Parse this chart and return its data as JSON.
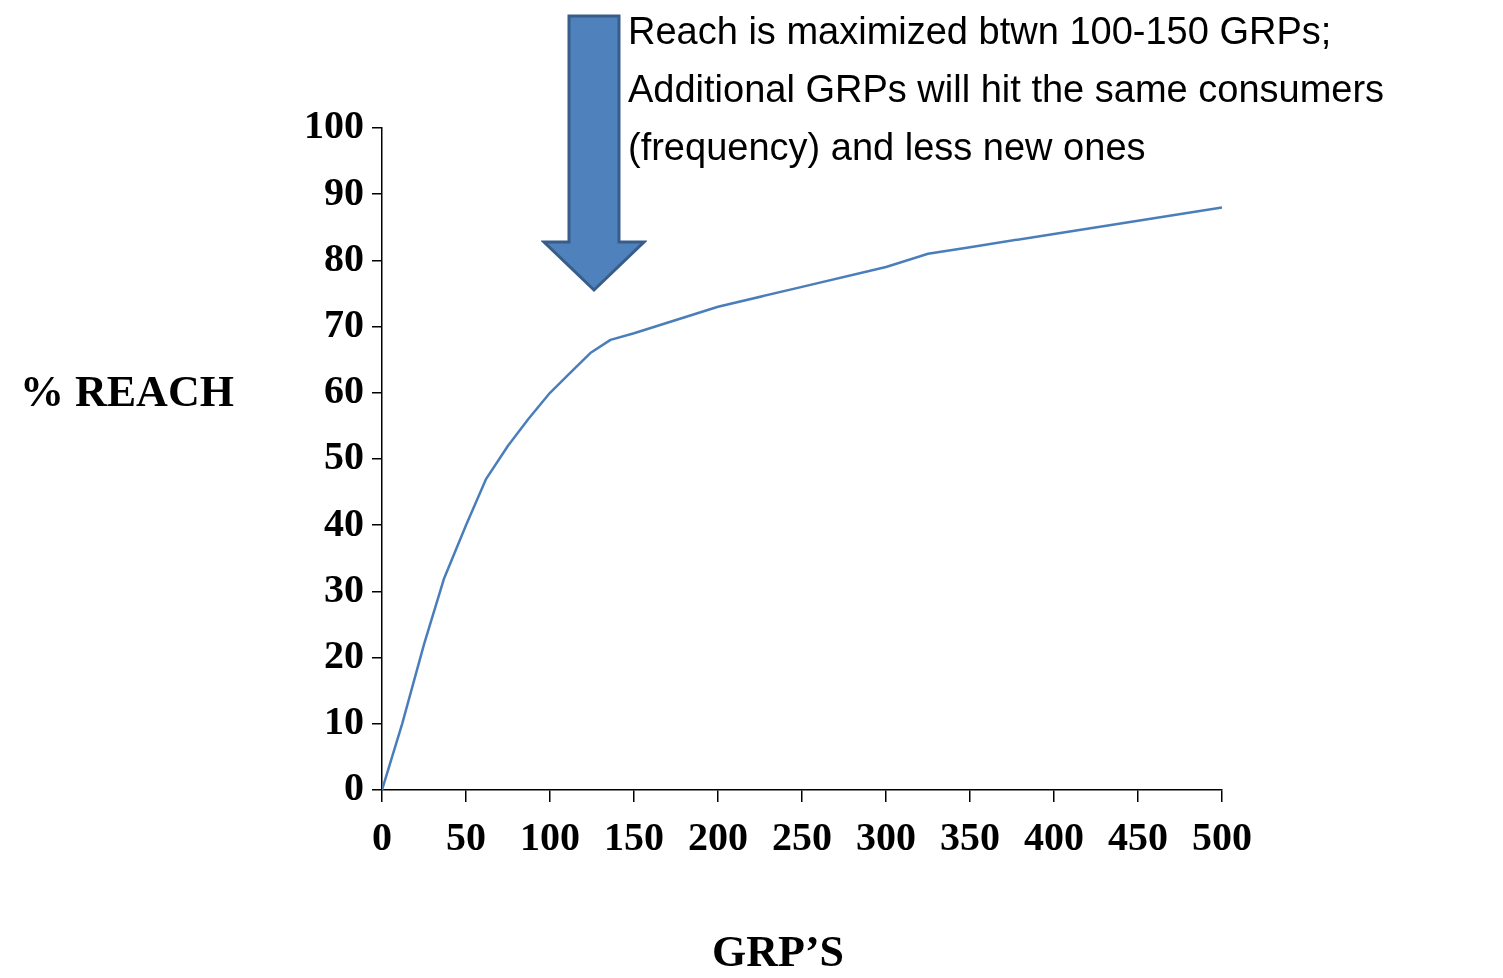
{
  "chart_data": {
    "type": "line",
    "xlabel": "GRP’S",
    "ylabel": "% REACH",
    "annotations": [
      "Reach is maximized btwn 100-150 GRPs;\nAdditional GRPs will hit the same consumers\n(frequency) and less new ones"
    ],
    "series": [
      {
        "color": "#4a7ebb",
        "x": [
          0,
          12,
          25,
          37,
          50,
          62,
          75,
          87,
          100,
          112,
          124,
          136,
          150,
          175,
          200,
          250,
          300,
          325,
          350,
          400,
          450,
          500
        ],
        "values": [
          0,
          10,
          22,
          32,
          40,
          47,
          52,
          56,
          60,
          63,
          66,
          68,
          69,
          71,
          73,
          76,
          79,
          81,
          82,
          84,
          86,
          88
        ]
      }
    ],
    "xlim": [
      0,
      500
    ],
    "xticks": [
      0,
      50,
      100,
      150,
      200,
      250,
      300,
      350,
      400,
      450,
      500
    ],
    "ylim": [
      0,
      100
    ],
    "yticks": [
      0,
      10,
      20,
      30,
      40,
      50,
      60,
      70,
      80,
      90,
      100
    ],
    "grid": false,
    "legend": false,
    "marker": "none",
    "line_style": "solid"
  }
}
